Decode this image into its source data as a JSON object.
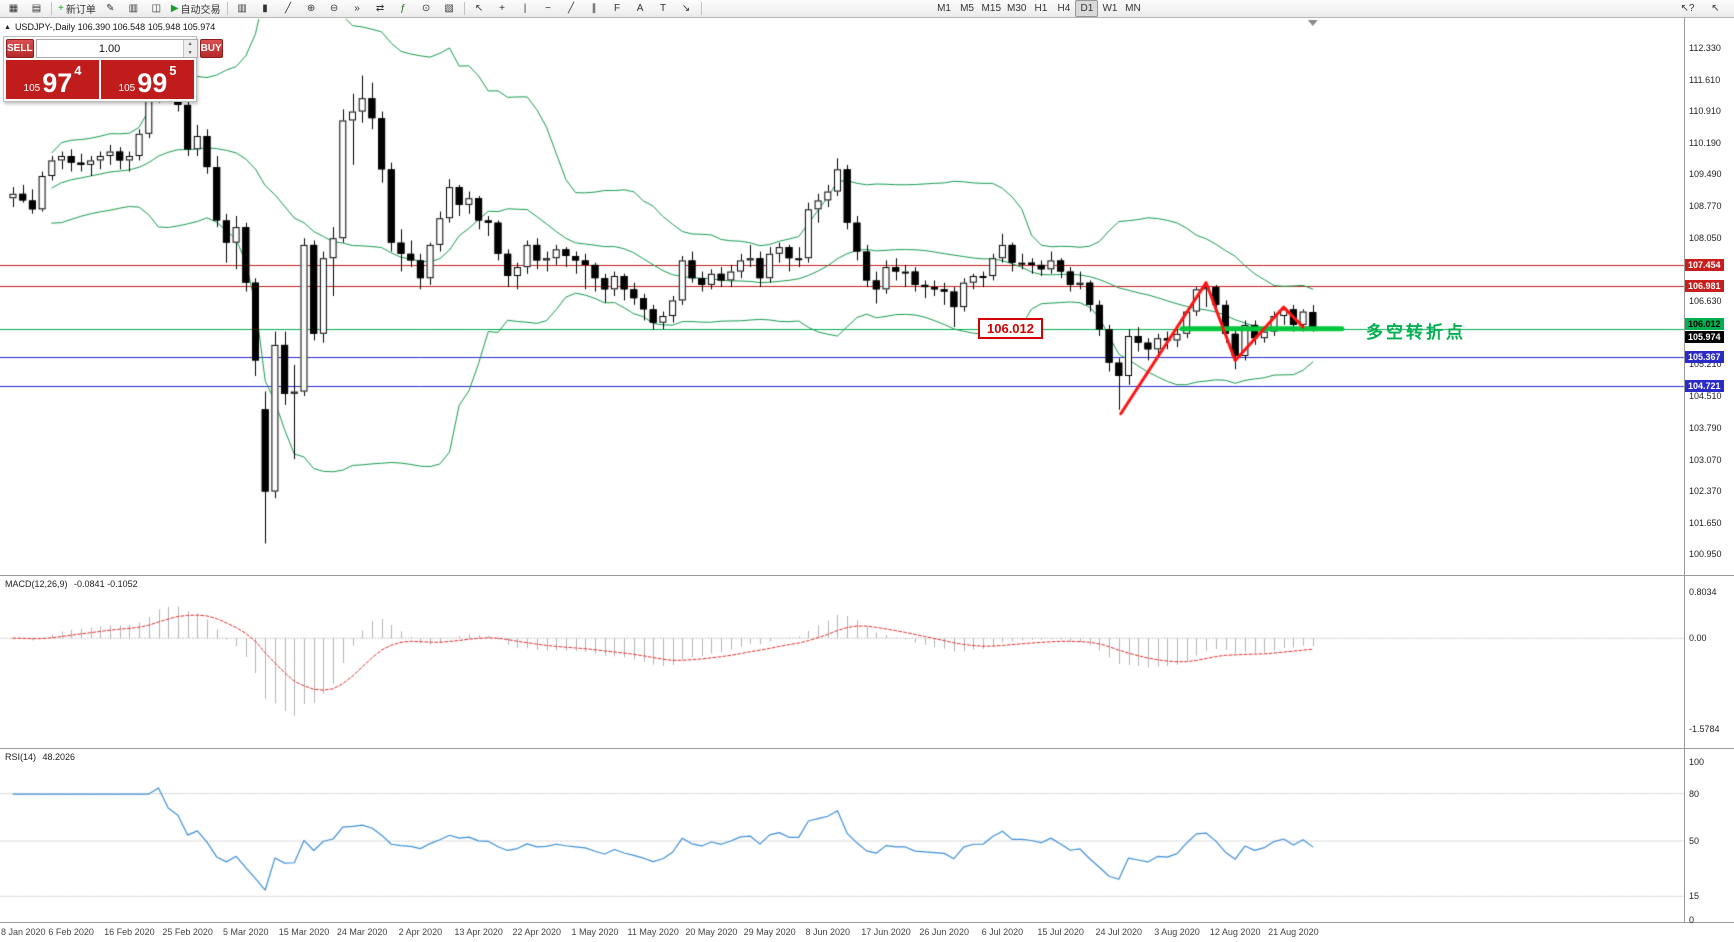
{
  "toolbar": {
    "groups": [
      {
        "id": "window",
        "items": [
          {
            "name": "new-chart-button",
            "glyph": "▦"
          },
          {
            "name": "profiles-button",
            "glyph": "▤"
          }
        ]
      },
      {
        "id": "trade",
        "items": [
          {
            "name": "new-order-button",
            "glyph": "+",
            "glyph_color": "#1b9e2c",
            "label": "新订单"
          },
          {
            "name": "metaeditor-button",
            "glyph": "✎"
          },
          {
            "name": "market-watch-button",
            "glyph": "▥"
          },
          {
            "name": "data-window-button",
            "glyph": "◫"
          },
          {
            "name": "autotrading-button",
            "glyph": "▶",
            "glyph_color": "#1b9e2c",
            "label": "自动交易"
          }
        ]
      },
      {
        "id": "charts",
        "items": [
          {
            "name": "bar-chart-button",
            "glyph": "▥"
          },
          {
            "name": "candlestick-chart-button",
            "glyph": "▮"
          },
          {
            "name": "line-chart-button",
            "glyph": "╱"
          },
          {
            "name": "zoom-in-button",
            "glyph": "⊕"
          },
          {
            "name": "zoom-out-button",
            "glyph": "⊖"
          },
          {
            "name": "auto-scroll-button",
            "glyph": "»"
          },
          {
            "name": "chart-shift-button",
            "glyph": "⇄"
          },
          {
            "name": "indicators-button",
            "glyph": "ƒ",
            "glyph_color": "#1b6e2c"
          },
          {
            "name": "periods-button",
            "glyph": "⊙"
          },
          {
            "name": "templates-button",
            "glyph": "▧"
          }
        ]
      },
      {
        "id": "lines",
        "items": [
          {
            "name": "cursor-button",
            "glyph": "↖"
          },
          {
            "name": "crosshair-button",
            "glyph": "+"
          },
          {
            "name": "vertical-line-button",
            "glyph": "|"
          },
          {
            "name": "horizontal-line-button",
            "glyph": "−"
          },
          {
            "name": "trendline-button",
            "glyph": "╱"
          },
          {
            "name": "equidistant-channel-button",
            "glyph": "∥"
          },
          {
            "name": "fibonacci-button",
            "glyph": "F"
          },
          {
            "name": "text-button",
            "glyph": "A"
          },
          {
            "name": "text-label-button",
            "glyph": "T"
          },
          {
            "name": "arrows-button",
            "glyph": "↘"
          }
        ]
      },
      {
        "id": "timeframes",
        "items": [
          {
            "name": "timeframe-m1-button",
            "label": "M1"
          },
          {
            "name": "timeframe-m5-button",
            "label": "M5"
          },
          {
            "name": "timeframe-m15-button",
            "label": "M15"
          },
          {
            "name": "timeframe-m30-button",
            "label": "M30"
          },
          {
            "name": "timeframe-h1-button",
            "label": "H1"
          },
          {
            "name": "timeframe-h4-button",
            "label": "H4"
          },
          {
            "name": "timeframe-d1-button",
            "label": "D1",
            "active": true
          },
          {
            "name": "timeframe-w1-button",
            "label": "W1"
          },
          {
            "name": "timeframe-mn-button",
            "label": "MN"
          }
        ]
      }
    ],
    "right_items": [
      {
        "name": "whats-this-help-button",
        "glyph": "↖?"
      },
      {
        "name": "pointer-tool-button",
        "glyph": "↖"
      }
    ]
  },
  "chart": {
    "toggle_icon": "▲",
    "header": "USDJPY-,Daily 106.390 106.548 105.948 105.974"
  },
  "trade_panel": {
    "sell_label": "SELL",
    "buy_label": "BUY",
    "volume": "1.00",
    "spin_up": "▲",
    "spin_down": "▼",
    "sell_price_prefix": "105",
    "sell_price_big": "97",
    "sell_price_sup": "4",
    "buy_price_prefix": "105",
    "buy_price_big": "99",
    "buy_price_sup": "5"
  },
  "chart_data": {
    "type": "candlestick",
    "symbol": "USDJPY-",
    "timeframe": "Daily",
    "ohlc_display": {
      "open": "106.390",
      "high": "106.548",
      "low": "105.948",
      "close": "105.974"
    },
    "x_label_step": 6,
    "x_labels": [
      "8 Jan 2020",
      "6 Feb 2020",
      "16 Feb 2020",
      "25 Feb 2020",
      "5 Mar 2020",
      "15 Mar 2020",
      "24 Mar 2020",
      "2 Apr 2020",
      "13 Apr 2020",
      "22 Apr 2020",
      "1 May 2020",
      "11 May 2020",
      "20 May 2020",
      "29 May 2020",
      "8 Jun 2020",
      "17 Jun 2020",
      "26 Jun 2020",
      "6 Jul 2020",
      "15 Jul 2020",
      "24 Jul 2020",
      "3 Aug 2020",
      "12 Aug 2020",
      "21 Aug 2020"
    ],
    "y_ticks": [
      112.33,
      111.61,
      110.91,
      110.19,
      109.49,
      108.77,
      108.05,
      106.63,
      105.21,
      104.51,
      103.79,
      103.07,
      102.37,
      101.65,
      100.95
    ],
    "price_badges": [
      {
        "text": "107.454",
        "price": 107.454,
        "bg": "#c81e1e",
        "fg": "#ffffff",
        "dy": 0
      },
      {
        "text": "106.981",
        "price": 106.981,
        "bg": "#c81e1e",
        "fg": "#ffffff",
        "dy": 0
      },
      {
        "text": "106.012",
        "price": 106.012,
        "bg": "#00b050",
        "fg": "#000000",
        "dy": -5
      },
      {
        "text": "105.974",
        "price": 105.974,
        "bg": "#000000",
        "fg": "#ffffff",
        "dy": 7
      },
      {
        "text": "105.367",
        "price": 105.367,
        "bg": "#2a2ac8",
        "fg": "#ffffff",
        "dy": 0
      },
      {
        "text": "104.721",
        "price": 104.721,
        "bg": "#2a2ac8",
        "fg": "#ffffff",
        "dy": 0
      }
    ],
    "hlines": [
      {
        "price": 107.454,
        "color": "#c81e1e"
      },
      {
        "price": 106.981,
        "color": "#c81e1e"
      },
      {
        "price": 106.012,
        "color": "#00b050"
      },
      {
        "price": 105.367,
        "color": "#2a2ac8"
      },
      {
        "price": 104.721,
        "color": "#2a2ac8"
      }
    ],
    "bollinger": {
      "period": 20,
      "deviation": 2,
      "color": "#169a4f"
    },
    "indicators": {
      "macd": {
        "label": "MACD(12,26,9)",
        "values_text": "-0.0841 -0.1052",
        "fast": 12,
        "slow": 26,
        "signal": 9,
        "scale_ticks": [
          "0.8034",
          "0.00",
          "-1.5784"
        ],
        "hist_color": "#b4b4b4",
        "signal_color": "#e03030"
      },
      "rsi": {
        "label": "RSI(14)",
        "value_text": "48.2026",
        "period": 14,
        "levels": [
          80,
          50,
          15
        ],
        "scale_ticks": [
          "100",
          "80",
          "50",
          "15",
          "0"
        ],
        "line_color": "#4090d8"
      }
    },
    "annotations": {
      "price_label_box": "106.012",
      "turning_point_text": "多空转折点",
      "zigzag_color": "#ff1414",
      "zigzag": [
        [
          114.2,
          104.1
        ],
        [
          123,
          107.05
        ],
        [
          126,
          105.3
        ],
        [
          131,
          106.5
        ],
        [
          133,
          106.05
        ]
      ],
      "support_segment": {
        "price": 106.012,
        "from_index": 120.5,
        "to_index": 137,
        "color": "#00c83c",
        "width": 5
      }
    },
    "candles": [
      [
        108.95,
        109.2,
        108.75,
        109.05
      ],
      [
        109.05,
        109.25,
        108.85,
        108.9
      ],
      [
        108.9,
        109.15,
        108.6,
        108.7
      ],
      [
        108.7,
        109.55,
        108.65,
        109.45
      ],
      [
        109.45,
        109.9,
        109.35,
        109.8
      ],
      [
        109.8,
        110.0,
        109.6,
        109.9
      ],
      [
        109.9,
        110.05,
        109.55,
        109.75
      ],
      [
        109.75,
        109.95,
        109.55,
        109.7
      ],
      [
        109.7,
        109.9,
        109.45,
        109.8
      ],
      [
        109.8,
        110.0,
        109.6,
        109.9
      ],
      [
        109.9,
        110.15,
        109.7,
        110.0
      ],
      [
        110.0,
        110.1,
        109.6,
        109.8
      ],
      [
        109.8,
        110.0,
        109.55,
        109.9
      ],
      [
        109.9,
        110.5,
        109.8,
        110.4
      ],
      [
        110.4,
        111.3,
        110.3,
        111.25
      ],
      [
        111.25,
        112.23,
        111.1,
        112.05
      ],
      [
        112.05,
        112.2,
        111.25,
        111.35
      ],
      [
        111.35,
        111.6,
        110.9,
        111.05
      ],
      [
        111.05,
        111.2,
        109.9,
        110.05
      ],
      [
        110.05,
        110.6,
        109.9,
        110.35
      ],
      [
        110.35,
        110.5,
        109.5,
        109.65
      ],
      [
        109.65,
        109.9,
        108.3,
        108.45
      ],
      [
        108.45,
        108.6,
        107.5,
        107.95
      ],
      [
        107.95,
        108.55,
        107.35,
        108.3
      ],
      [
        108.3,
        108.4,
        106.85,
        107.05
      ],
      [
        107.05,
        107.15,
        104.95,
        105.3
      ],
      [
        104.2,
        104.6,
        101.18,
        102.35
      ],
      [
        102.35,
        105.95,
        102.2,
        105.65
      ],
      [
        105.65,
        105.95,
        104.3,
        104.55
      ],
      [
        104.55,
        105.2,
        103.08,
        104.6
      ],
      [
        104.6,
        108.05,
        104.5,
        107.9
      ],
      [
        107.9,
        108.0,
        105.75,
        105.9
      ],
      [
        105.9,
        107.75,
        105.7,
        107.6
      ],
      [
        107.6,
        108.3,
        106.75,
        108.05
      ],
      [
        108.05,
        110.95,
        107.95,
        110.7
      ],
      [
        110.7,
        111.3,
        109.7,
        110.9
      ],
      [
        110.9,
        111.71,
        110.65,
        111.2
      ],
      [
        111.2,
        111.55,
        110.5,
        110.75
      ],
      [
        110.75,
        110.9,
        109.3,
        109.6
      ],
      [
        109.6,
        109.75,
        107.75,
        107.95
      ],
      [
        107.95,
        108.25,
        107.3,
        107.7
      ],
      [
        107.7,
        108.0,
        107.4,
        107.55
      ],
      [
        107.55,
        107.7,
        106.9,
        107.15
      ],
      [
        107.15,
        107.95,
        107.0,
        107.9
      ],
      [
        107.9,
        108.65,
        107.75,
        108.5
      ],
      [
        108.5,
        109.38,
        108.4,
        109.2
      ],
      [
        109.2,
        109.25,
        108.55,
        108.8
      ],
      [
        108.8,
        109.1,
        108.6,
        108.95
      ],
      [
        108.95,
        109.0,
        108.25,
        108.45
      ],
      [
        108.45,
        108.55,
        108.1,
        108.4
      ],
      [
        108.4,
        108.45,
        107.55,
        107.7
      ],
      [
        107.7,
        107.8,
        106.95,
        107.2
      ],
      [
        107.2,
        107.5,
        106.9,
        107.4
      ],
      [
        107.4,
        108.0,
        107.25,
        107.9
      ],
      [
        107.9,
        108.05,
        107.35,
        107.55
      ],
      [
        107.55,
        107.75,
        107.3,
        107.6
      ],
      [
        107.6,
        107.9,
        107.45,
        107.8
      ],
      [
        107.8,
        107.85,
        107.4,
        107.65
      ],
      [
        107.65,
        107.75,
        107.25,
        107.55
      ],
      [
        107.55,
        107.7,
        106.9,
        107.45
      ],
      [
        107.45,
        107.5,
        106.85,
        107.15
      ],
      [
        107.15,
        107.25,
        106.6,
        106.9
      ],
      [
        106.9,
        107.3,
        106.75,
        107.2
      ],
      [
        107.2,
        107.25,
        106.65,
        106.9
      ],
      [
        106.9,
        107.05,
        106.55,
        106.7
      ],
      [
        106.7,
        106.8,
        106.2,
        106.45
      ],
      [
        106.45,
        106.55,
        105.99,
        106.15
      ],
      [
        106.15,
        106.4,
        106.0,
        106.3
      ],
      [
        106.3,
        106.75,
        106.15,
        106.65
      ],
      [
        106.65,
        107.65,
        106.55,
        107.55
      ],
      [
        107.55,
        107.75,
        107.05,
        107.15
      ],
      [
        107.15,
        107.3,
        106.85,
        107.0
      ],
      [
        107.0,
        107.35,
        106.9,
        107.25
      ],
      [
        107.25,
        107.4,
        106.95,
        107.1
      ],
      [
        107.1,
        107.45,
        106.95,
        107.3
      ],
      [
        107.3,
        107.7,
        107.15,
        107.55
      ],
      [
        107.55,
        107.9,
        107.4,
        107.6
      ],
      [
        107.6,
        107.75,
        106.95,
        107.15
      ],
      [
        107.15,
        107.85,
        107.05,
        107.7
      ],
      [
        107.7,
        107.95,
        107.5,
        107.85
      ],
      [
        107.85,
        107.9,
        107.3,
        107.6
      ],
      [
        107.6,
        107.85,
        107.4,
        107.6
      ],
      [
        107.6,
        108.85,
        107.5,
        108.7
      ],
      [
        108.7,
        109.05,
        108.4,
        108.9
      ],
      [
        108.9,
        109.25,
        108.75,
        109.1
      ],
      [
        109.1,
        109.85,
        109.0,
        109.6
      ],
      [
        109.6,
        109.7,
        108.25,
        108.4
      ],
      [
        108.4,
        108.55,
        107.55,
        107.75
      ],
      [
        107.75,
        107.9,
        106.95,
        107.1
      ],
      [
        107.1,
        107.3,
        106.58,
        106.9
      ],
      [
        106.9,
        107.55,
        106.8,
        107.4
      ],
      [
        107.4,
        107.6,
        107.1,
        107.3
      ],
      [
        107.3,
        107.45,
        106.95,
        107.3
      ],
      [
        107.3,
        107.4,
        106.85,
        107.0
      ],
      [
        107.0,
        107.1,
        106.7,
        106.95
      ],
      [
        106.95,
        107.1,
        106.75,
        106.9
      ],
      [
        106.9,
        107.05,
        106.55,
        106.85
      ],
      [
        106.85,
        106.95,
        106.05,
        106.5
      ],
      [
        106.5,
        107.15,
        106.4,
        107.05
      ],
      [
        107.05,
        107.25,
        106.9,
        107.2
      ],
      [
        107.2,
        107.3,
        106.95,
        107.2
      ],
      [
        107.2,
        107.7,
        107.1,
        107.6
      ],
      [
        107.6,
        108.15,
        107.5,
        107.9
      ],
      [
        107.9,
        107.95,
        107.3,
        107.5
      ],
      [
        107.5,
        107.7,
        107.35,
        107.5
      ],
      [
        107.5,
        107.6,
        107.25,
        107.45
      ],
      [
        107.45,
        107.55,
        107.2,
        107.35
      ],
      [
        107.35,
        107.75,
        107.25,
        107.55
      ],
      [
        107.55,
        107.6,
        107.15,
        107.3
      ],
      [
        107.3,
        107.4,
        106.85,
        107.0
      ],
      [
        107.0,
        107.3,
        106.9,
        107.05
      ],
      [
        107.05,
        107.1,
        106.4,
        106.55
      ],
      [
        106.55,
        106.65,
        105.85,
        106.0
      ],
      [
        106.0,
        106.1,
        105.05,
        105.25
      ],
      [
        105.25,
        105.35,
        104.19,
        104.95
      ],
      [
        104.95,
        106.0,
        104.75,
        105.85
      ],
      [
        105.85,
        106.05,
        105.5,
        105.7
      ],
      [
        105.7,
        105.8,
        105.3,
        105.55
      ],
      [
        105.55,
        105.9,
        105.4,
        105.8
      ],
      [
        105.8,
        105.95,
        105.55,
        105.75
      ],
      [
        105.75,
        106.0,
        105.6,
        105.9
      ],
      [
        105.9,
        106.45,
        105.8,
        106.4
      ],
      [
        106.4,
        106.95,
        106.3,
        106.9
      ],
      [
        106.9,
        107.05,
        106.5,
        106.95
      ],
      [
        106.95,
        107.0,
        106.35,
        106.55
      ],
      [
        106.55,
        106.65,
        105.7,
        105.9
      ],
      [
        105.9,
        106.0,
        105.1,
        105.4
      ],
      [
        105.4,
        106.2,
        105.3,
        106.1
      ],
      [
        106.1,
        106.2,
        105.65,
        105.8
      ],
      [
        105.8,
        106.05,
        105.7,
        105.95
      ],
      [
        105.95,
        106.4,
        105.85,
        106.3
      ],
      [
        106.3,
        106.5,
        106.1,
        106.45
      ],
      [
        106.45,
        106.55,
        105.95,
        106.1
      ],
      [
        106.1,
        106.45,
        105.95,
        106.4
      ],
      [
        106.39,
        106.548,
        105.948,
        105.974
      ]
    ]
  },
  "colors": {
    "bull": "#ffffff",
    "bear": "#000000",
    "wick": "#000000",
    "bollinger": "#169a4f",
    "macd_hist": "#b4b4b4",
    "macd_signal": "#e03030",
    "rsi_line": "#4090d8",
    "hline_red": "#c81e1e",
    "hline_blue": "#2a2ac8",
    "hline_green": "#00b050",
    "annotation_red": "#ff1414",
    "panel_red": "#c11c1c"
  }
}
